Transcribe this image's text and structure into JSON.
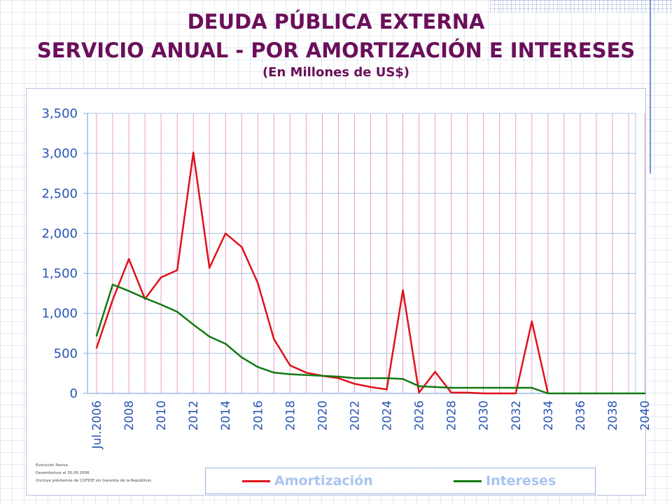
{
  "title": {
    "main": "DEUDA PÚBLICA EXTERNA",
    "sub": "SERVICIO ANUAL - POR AMORTIZACIÓN E INTERESES",
    "unit": "(En Millones de US$)"
  },
  "notes": [
    "Evolución Pasiva.",
    "Desembolsos al 30.06.2006",
    "(Incluye préstamos de COFIDE sin Garantía de la República)."
  ],
  "colors": {
    "title": "#6b0f5a",
    "amortizacion": "#e0111b",
    "intereses": "#117a11",
    "axis_text": "#2a55b5",
    "grid_h": "#9fc6e6",
    "grid_v": "#e3a1c4"
  },
  "chart_data": {
    "type": "line",
    "x": [
      "Jul.2006",
      "2007",
      "2008",
      "2009",
      "2010",
      "2011",
      "2012",
      "2013",
      "2014",
      "2015",
      "2016",
      "2017",
      "2018",
      "2019",
      "2020",
      "2021",
      "2022",
      "2023",
      "2024",
      "2025",
      "2026",
      "2027",
      "2028",
      "2029",
      "2030",
      "2031",
      "2032",
      "2033",
      "2034",
      "2035",
      "2036",
      "2037",
      "2038",
      "2039",
      "2040"
    ],
    "x_tick_labels": [
      "Jul.2006",
      "2008",
      "2010",
      "2012",
      "2014",
      "2016",
      "2018",
      "2020",
      "2022",
      "2024",
      "2026",
      "2028",
      "2030",
      "2032",
      "2034",
      "2036",
      "2038",
      "2040"
    ],
    "y_tick_labels": [
      "0",
      "500",
      "1,000",
      "1,500",
      "2,000",
      "2,500",
      "3,000",
      "3,500"
    ],
    "ylim": [
      0,
      3500
    ],
    "grid": true,
    "legend_position": "bottom",
    "series": [
      {
        "name": "Amortización",
        "color": "#e0111b",
        "values": [
          570,
          1170,
          1680,
          1180,
          1450,
          1540,
          3010,
          1570,
          2000,
          1830,
          1380,
          680,
          350,
          260,
          220,
          190,
          120,
          80,
          50,
          1290,
          10,
          270,
          10,
          10,
          0,
          0,
          0,
          900,
          0,
          null,
          null,
          null,
          null,
          null,
          null
        ]
      },
      {
        "name": "Intereses",
        "color": "#117a11",
        "values": [
          720,
          1360,
          1280,
          1190,
          1110,
          1020,
          860,
          710,
          620,
          450,
          330,
          260,
          240,
          230,
          220,
          210,
          190,
          190,
          190,
          180,
          90,
          80,
          70,
          70,
          70,
          70,
          70,
          70,
          0,
          0,
          0,
          0,
          0,
          0,
          0
        ]
      }
    ]
  }
}
